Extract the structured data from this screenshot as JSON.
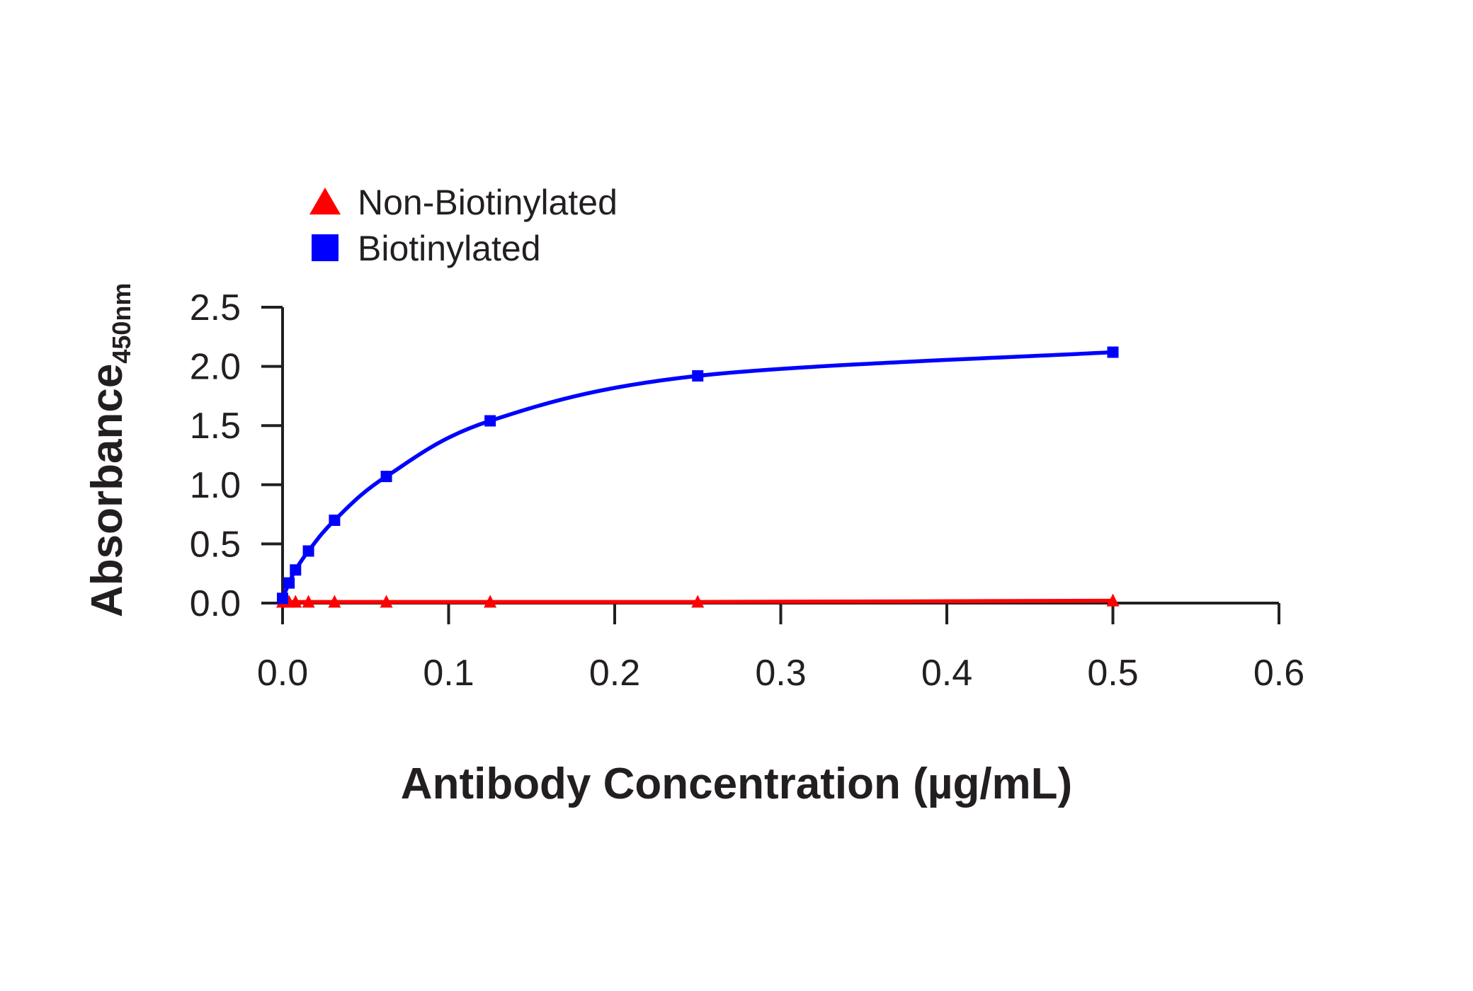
{
  "chart_data": {
    "type": "line",
    "xlabel": "Antibody Concentration (µg/mL)",
    "ylabel": "Absorbance",
    "ylabel_subscript": "450nm",
    "xlim": [
      0,
      0.6
    ],
    "ylim": [
      0,
      2.5
    ],
    "x_ticks": [
      "0.0",
      "0.1",
      "0.2",
      "0.3",
      "0.4",
      "0.5",
      "0.6"
    ],
    "y_ticks": [
      "0.0",
      "0.5",
      "1.0",
      "1.5",
      "2.0",
      "2.5"
    ],
    "grid": false,
    "legend_position": "top-left",
    "series": [
      {
        "name": "Non-Biotinylated",
        "color": "#ff0000",
        "marker": "triangle",
        "x": [
          0.0,
          0.0039,
          0.0078,
          0.0156,
          0.0313,
          0.0625,
          0.125,
          0.25,
          0.5
        ],
        "y": [
          0.01,
          0.01,
          0.01,
          0.01,
          0.01,
          0.01,
          0.01,
          0.01,
          0.02
        ]
      },
      {
        "name": "Biotinylated",
        "color": "#0000ff",
        "marker": "square",
        "x": [
          0.0,
          0.0039,
          0.0078,
          0.0156,
          0.0313,
          0.0625,
          0.125,
          0.25,
          0.5
        ],
        "y": [
          0.04,
          0.17,
          0.28,
          0.44,
          0.7,
          1.07,
          1.54,
          1.92,
          2.12
        ]
      }
    ]
  }
}
